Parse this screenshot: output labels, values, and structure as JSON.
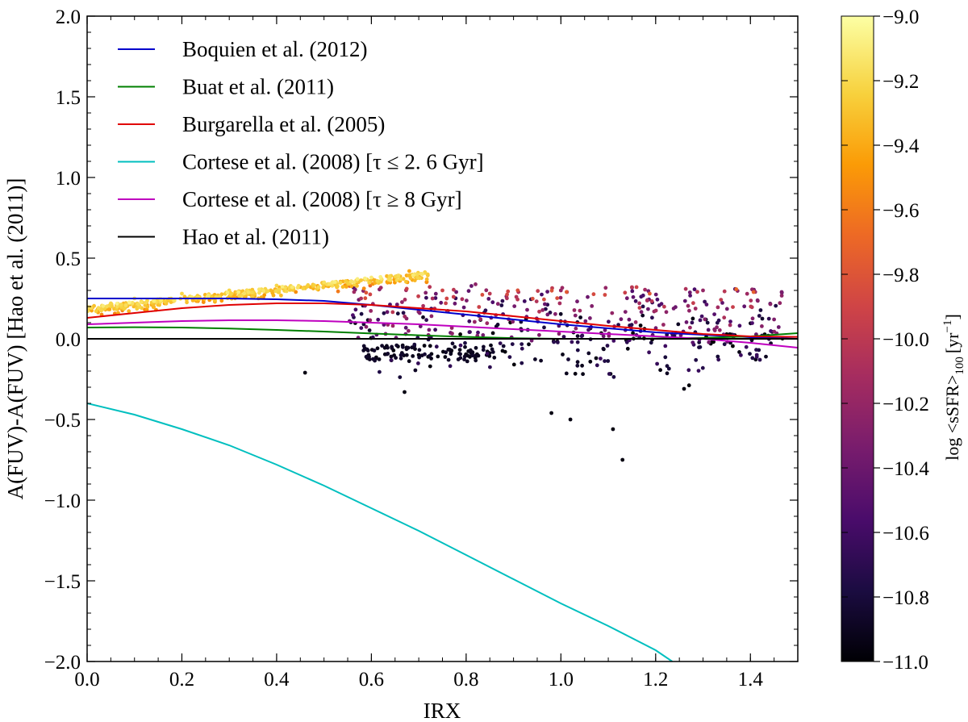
{
  "chart_data": {
    "type": "scatter",
    "xlabel": "IRX",
    "ylabel": "A(FUV)-A(FUV) [Hao et al. (2011)]",
    "xlim": [
      0.0,
      1.5
    ],
    "ylim": [
      -2.0,
      2.0
    ],
    "x_ticks": [
      "0.0",
      "0.2",
      "0.4",
      "0.6",
      "0.8",
      "1.0",
      "1.2",
      "1.4"
    ],
    "y_ticks": [
      "−2.0",
      "−1.5",
      "−1.0",
      "−0.5",
      "0.0",
      "0.5",
      "1.0",
      "1.5",
      "2.0"
    ],
    "grid": false,
    "legend_position": "top-left",
    "series": [
      {
        "name": "Boquien et al. (2012)",
        "color": "#0000cc",
        "x": [
          0.0,
          0.1,
          0.2,
          0.3,
          0.4,
          0.5,
          0.6,
          0.7,
          0.8,
          0.9,
          1.0,
          1.1,
          1.2,
          1.3,
          1.4,
          1.5
        ],
        "y": [
          0.25,
          0.25,
          0.25,
          0.25,
          0.245,
          0.235,
          0.21,
          0.18,
          0.15,
          0.12,
          0.09,
          0.065,
          0.04,
          0.025,
          0.01,
          0.0
        ]
      },
      {
        "name": "Buat et al. (2011)",
        "color": "#007f00",
        "x": [
          0.0,
          0.1,
          0.2,
          0.3,
          0.4,
          0.5,
          0.6,
          0.7,
          0.8,
          0.9,
          1.0,
          1.1,
          1.2,
          1.3,
          1.4,
          1.5
        ],
        "y": [
          0.07,
          0.072,
          0.07,
          0.064,
          0.055,
          0.045,
          0.033,
          0.022,
          0.012,
          0.004,
          0.0,
          0.0,
          0.002,
          0.006,
          0.015,
          0.035
        ]
      },
      {
        "name": "Burgarella et al. (2005)",
        "color": "#e00000",
        "x": [
          0.0,
          0.1,
          0.2,
          0.3,
          0.4,
          0.5,
          0.6,
          0.7,
          0.8,
          0.9,
          1.0,
          1.1,
          1.2,
          1.3,
          1.4,
          1.5
        ],
        "y": [
          0.13,
          0.16,
          0.19,
          0.21,
          0.22,
          0.22,
          0.21,
          0.19,
          0.17,
          0.14,
          0.11,
          0.08,
          0.055,
          0.03,
          0.015,
          0.012
        ]
      },
      {
        "name": "Cortese et al. (2008) [τ ≤ 2. 6 Gyr]",
        "color": "#00bfbf",
        "x": [
          0.0,
          0.1,
          0.2,
          0.3,
          0.4,
          0.5,
          0.6,
          0.7,
          0.8,
          0.9,
          1.0,
          1.1,
          1.2,
          1.235
        ],
        "y": [
          -0.4,
          -0.47,
          -0.56,
          -0.66,
          -0.78,
          -0.91,
          -1.05,
          -1.19,
          -1.34,
          -1.49,
          -1.64,
          -1.78,
          -1.93,
          -2.0
        ]
      },
      {
        "name": "Cortese et al. (2008) [τ ≥ 8 Gyr]",
        "color": "#bf00bf",
        "x": [
          0.0,
          0.1,
          0.2,
          0.3,
          0.4,
          0.5,
          0.6,
          0.7,
          0.8,
          0.9,
          1.0,
          1.1,
          1.2,
          1.3,
          1.4,
          1.5
        ],
        "y": [
          0.09,
          0.1,
          0.11,
          0.115,
          0.115,
          0.11,
          0.1,
          0.09,
          0.075,
          0.06,
          0.045,
          0.03,
          0.015,
          0.0,
          -0.025,
          -0.055
        ]
      },
      {
        "name": "Hao et al. (2011)",
        "color": "#000000",
        "x": [
          0.0,
          1.5
        ],
        "y": [
          0.0,
          0.0
        ]
      }
    ],
    "scatter": {
      "approx_point_count": 1000,
      "color_quantity": "log sSFR",
      "representative_points": [
        {
          "x": 0.05,
          "y": 0.22,
          "c": -9.2
        },
        {
          "x": 0.1,
          "y": 0.25,
          "c": -9.15
        },
        {
          "x": 0.2,
          "y": 0.28,
          "c": -9.2
        },
        {
          "x": 0.3,
          "y": 0.3,
          "c": -9.2
        },
        {
          "x": 0.4,
          "y": 0.33,
          "c": -9.2
        },
        {
          "x": 0.5,
          "y": 0.35,
          "c": -9.15
        },
        {
          "x": 0.6,
          "y": 0.38,
          "c": -9.1
        },
        {
          "x": 0.68,
          "y": 0.42,
          "c": -9.4
        },
        {
          "x": 0.75,
          "y": 0.3,
          "c": -9.9
        },
        {
          "x": 0.85,
          "y": 0.28,
          "c": -10.0
        },
        {
          "x": 1.0,
          "y": 0.3,
          "c": -10.2
        },
        {
          "x": 1.15,
          "y": 0.32,
          "c": -10.0
        },
        {
          "x": 1.3,
          "y": 0.3,
          "c": -10.2
        },
        {
          "x": 1.45,
          "y": 0.12,
          "c": -10.3
        },
        {
          "x": 0.7,
          "y": -0.1,
          "c": -10.95
        },
        {
          "x": 0.8,
          "y": -0.1,
          "c": -10.95
        },
        {
          "x": 0.46,
          "y": -0.21,
          "c": -10.95
        },
        {
          "x": 0.67,
          "y": -0.33,
          "c": -10.95
        },
        {
          "x": 0.98,
          "y": -0.46,
          "c": -10.95
        },
        {
          "x": 1.02,
          "y": -0.5,
          "c": -10.95
        },
        {
          "x": 1.11,
          "y": -0.56,
          "c": -10.95
        },
        {
          "x": 1.13,
          "y": -0.75,
          "c": -10.95
        },
        {
          "x": 1.26,
          "y": -0.31,
          "c": -10.95
        },
        {
          "x": 1.42,
          "y": -0.13,
          "c": -10.7
        }
      ]
    },
    "colorbar": {
      "label": "log <sSFR>100 [yr−1]",
      "label_main": "log <sSFR>",
      "label_sub": "100",
      "label_unit": "[yr",
      "label_sup": "−1",
      "label_close": "]",
      "range": [
        -11.0,
        -9.0
      ],
      "ticks": [
        "−9.0",
        "−9.2",
        "−9.4",
        "−9.6",
        "−9.8",
        "−10.0",
        "−10.2",
        "−10.4",
        "−10.6",
        "−10.8",
        "−11.0"
      ],
      "colormap": "inferno",
      "stops": [
        "#000004",
        "#1b0c41",
        "#4a0c6b",
        "#781c6d",
        "#a52c60",
        "#cf4446",
        "#ed6925",
        "#fb9b06",
        "#f7d13d",
        "#fcffa4"
      ]
    }
  }
}
